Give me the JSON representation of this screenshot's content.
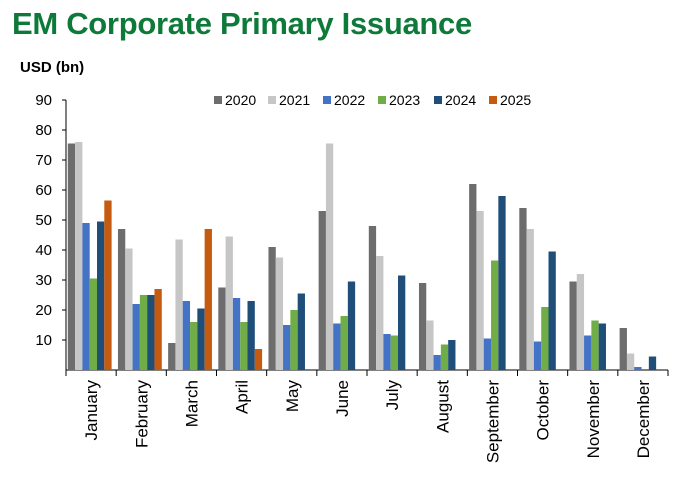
{
  "chart_data": {
    "type": "bar",
    "title": "EM Corporate Primary Issuance",
    "ylabel": "USD (bn)",
    "xlabel": "",
    "ylim": [
      0,
      90
    ],
    "yticks": [
      10,
      20,
      30,
      40,
      50,
      60,
      70,
      80,
      90
    ],
    "grid": false,
    "legend_position": "top-right",
    "categories": [
      "January",
      "February",
      "March",
      "April",
      "May",
      "June",
      "July",
      "August",
      "September",
      "October",
      "November",
      "December"
    ],
    "series": [
      {
        "name": "2020",
        "color": "#6d6d6d",
        "values": [
          75.5,
          47,
          9,
          27.5,
          41,
          53,
          48,
          29,
          62,
          54,
          29.5,
          14
        ]
      },
      {
        "name": "2021",
        "color": "#c6c6c6",
        "values": [
          76,
          40.5,
          43.5,
          44.5,
          37.5,
          75.5,
          38,
          16.5,
          53,
          47,
          32,
          5.5
        ]
      },
      {
        "name": "2022",
        "color": "#4472c4",
        "values": [
          49,
          22,
          23,
          24,
          15,
          15.5,
          12,
          5,
          10.5,
          9.5,
          11.5,
          1
        ]
      },
      {
        "name": "2023",
        "color": "#70ad47",
        "values": [
          30.5,
          25,
          16,
          16,
          20,
          18,
          11.5,
          8.5,
          36.5,
          21,
          16.5,
          0
        ]
      },
      {
        "name": "2024",
        "color": "#1f4e79",
        "values": [
          49.5,
          25,
          20.5,
          23,
          25.5,
          29.5,
          31.5,
          10,
          58,
          39.5,
          15.5,
          4.5
        ]
      },
      {
        "name": "2025",
        "color": "#c55a11",
        "values": [
          56.5,
          27,
          47,
          7,
          null,
          null,
          null,
          null,
          null,
          null,
          null,
          null
        ]
      }
    ]
  }
}
